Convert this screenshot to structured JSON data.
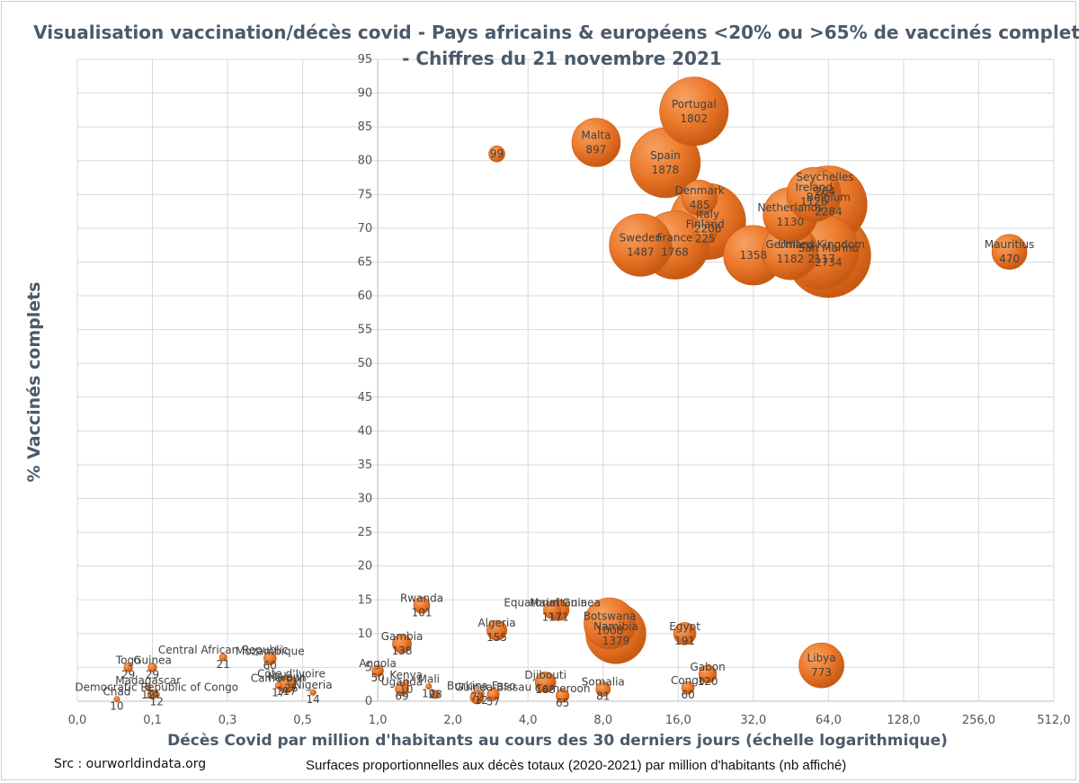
{
  "chart_data": {
    "type": "bubble",
    "title_line1": "Visualisation  vaccination/décès covid - Pays africains & européens <20% ou >65% de vaccinés complets",
    "title_line2": "- Chiffres du 21 novembre 2021",
    "xlabel": "Décès Covid par million d'habitants au cours des 30 derniers jours (échelle logarithmique)",
    "ylabel": "% Vaccinés complets",
    "x_scale": "log2",
    "xlim": [
      0.0625,
      512
    ],
    "ylim": [
      0,
      95
    ],
    "x_tick_values": [
      0.0625,
      0.125,
      0.25,
      0.5,
      1,
      2,
      4,
      8,
      16,
      32,
      64,
      128,
      256,
      512
    ],
    "x_tick_labels": [
      "0,0",
      "0,1",
      "0,3",
      "0,5",
      "1,0",
      "2,0",
      "4,0",
      "8,0",
      "16,0",
      "32,0",
      "64,0",
      "128,0",
      "256,0",
      "512,0"
    ],
    "y_ticks": [
      0,
      5,
      10,
      15,
      20,
      25,
      30,
      35,
      40,
      45,
      50,
      55,
      60,
      65,
      70,
      75,
      80,
      85,
      90,
      95
    ],
    "bubble_size_meaning": "Surfaces proportionnelles aux décès totaux (2020-2021) par million d'habitants (nb affiché)",
    "points": [
      {
        "name": "Portugal",
        "x": 18.5,
        "y": 87.3,
        "size": 1802
      },
      {
        "name": "Malta",
        "x": 7.5,
        "y": 82.7,
        "size": 897
      },
      {
        "name": "",
        "x": 3.0,
        "y": 81.0,
        "size": 99
      },
      {
        "name": "Spain",
        "x": 14.2,
        "y": 79.7,
        "size": 1878
      },
      {
        "name": "Denmark",
        "x": 19.5,
        "y": 74.5,
        "size": 485
      },
      {
        "name": "Seychelles",
        "x": 62.0,
        "y": 76.5,
        "size": 264
      },
      {
        "name": "Ireland",
        "x": 56.0,
        "y": 75.0,
        "size": 1126
      },
      {
        "name": "Belgium",
        "x": 64.0,
        "y": 73.5,
        "size": 2284
      },
      {
        "name": "Netherlands",
        "x": 45.0,
        "y": 72.0,
        "size": 1130
      },
      {
        "name": "Italy",
        "x": 21.0,
        "y": 71.0,
        "size": 2206
      },
      {
        "name": "Finland",
        "x": 20.5,
        "y": 69.5,
        "size": 225
      },
      {
        "name": "Sweden",
        "x": 11.3,
        "y": 67.5,
        "size": 1487
      },
      {
        "name": "France",
        "x": 15.5,
        "y": 67.5,
        "size": 1768
      },
      {
        "name": "Germany",
        "x": 45.0,
        "y": 66.5,
        "size": 1182
      },
      {
        "name": "",
        "x": 32.0,
        "y": 66.0,
        "size": 1358
      },
      {
        "name": "United Kingdom",
        "x": 60.0,
        "y": 66.5,
        "size": 2117
      },
      {
        "name": "San Marino",
        "x": 64.0,
        "y": 66.0,
        "size": 2734
      },
      {
        "name": "Mauritius",
        "x": 340.0,
        "y": 66.5,
        "size": 470
      },
      {
        "name": "Rwanda",
        "x": 1.5,
        "y": 14.2,
        "size": 101
      },
      {
        "name": "Equatorial Guinea",
        "x": 5.0,
        "y": 13.5,
        "size": 117
      },
      {
        "name": "Mauritania",
        "x": 5.3,
        "y": 13.5,
        "size": 171
      },
      {
        "name": "Botswana",
        "x": 8.5,
        "y": 11.5,
        "size": 1008
      },
      {
        "name": "Namibia",
        "x": 9.0,
        "y": 10.0,
        "size": 1379
      },
      {
        "name": "Algeria",
        "x": 3.0,
        "y": 10.5,
        "size": 155
      },
      {
        "name": "Egypt",
        "x": 17.0,
        "y": 10.0,
        "size": 191
      },
      {
        "name": "Gambia",
        "x": 1.25,
        "y": 8.5,
        "size": 138
      },
      {
        "name": "Libya",
        "x": 60.0,
        "y": 5.3,
        "size": 773
      },
      {
        "name": "Central African Republic",
        "x": 0.24,
        "y": 6.5,
        "size": 21
      },
      {
        "name": "Mozambique",
        "x": 0.37,
        "y": 6.3,
        "size": 60
      },
      {
        "name": "Togo",
        "x": 0.1,
        "y": 5.0,
        "size": 29
      },
      {
        "name": "Guinea",
        "x": 0.125,
        "y": 5.0,
        "size": 29
      },
      {
        "name": "Angola",
        "x": 1.0,
        "y": 4.5,
        "size": 50
      },
      {
        "name": "Gabon",
        "x": 21.0,
        "y": 4.0,
        "size": 120
      },
      {
        "name": "Côte d'Ivoire",
        "x": 0.45,
        "y": 3.0,
        "size": 26
      },
      {
        "name": "Malawi",
        "x": 0.43,
        "y": 2.5,
        "size": 117
      },
      {
        "name": "Cameroun",
        "x": 0.4,
        "y": 2.3,
        "size": 17
      },
      {
        "name": "Djibouti",
        "x": 4.7,
        "y": 2.8,
        "size": 163
      },
      {
        "name": "Kenya",
        "x": 1.3,
        "y": 2.8,
        "size": 10
      },
      {
        "name": "Mali",
        "x": 1.6,
        "y": 2.2,
        "size": 10
      },
      {
        "name": "Uganda",
        "x": 1.25,
        "y": 1.8,
        "size": 69
      },
      {
        "name": "Somalia",
        "x": 8.0,
        "y": 1.8,
        "size": 81
      },
      {
        "name": "Congo",
        "x": 17.5,
        "y": 2.0,
        "size": 60
      },
      {
        "name": "Burkina Faso",
        "x": 2.6,
        "y": 1.2,
        "size": 12
      },
      {
        "name": "Guinea-Bissau",
        "x": 2.9,
        "y": 1.0,
        "size": 57
      },
      {
        "name": "",
        "x": 2.5,
        "y": 0.6,
        "size": 72
      },
      {
        "name": "Madagascar",
        "x": 0.12,
        "y": 2.0,
        "size": 12
      },
      {
        "name": "",
        "x": 0.125,
        "y": 1.0,
        "size": 34
      },
      {
        "name": "Nigeria",
        "x": 0.55,
        "y": 1.3,
        "size": 14
      },
      {
        "name": "Cameroon",
        "x": 5.5,
        "y": 0.8,
        "size": 65
      },
      {
        "name": "",
        "x": 1.7,
        "y": 1.0,
        "size": 28
      },
      {
        "name": "Chad",
        "x": 0.09,
        "y": 0.3,
        "size": 10
      },
      {
        "name": "Democratic Republic of Congo",
        "x": 0.13,
        "y": 1.0,
        "size": 12
      }
    ]
  },
  "footer": {
    "source": "Src : ourworldindata.org",
    "note": "Surfaces proportionnelles aux décès totaux (2020-2021) par million d'habitants (nb affiché)"
  },
  "colors": {
    "bubble_fill": "#ec7a2c",
    "bubble_dark": "#c95a12",
    "grid": "#d9d9d9",
    "text": "#4a5a6a"
  }
}
